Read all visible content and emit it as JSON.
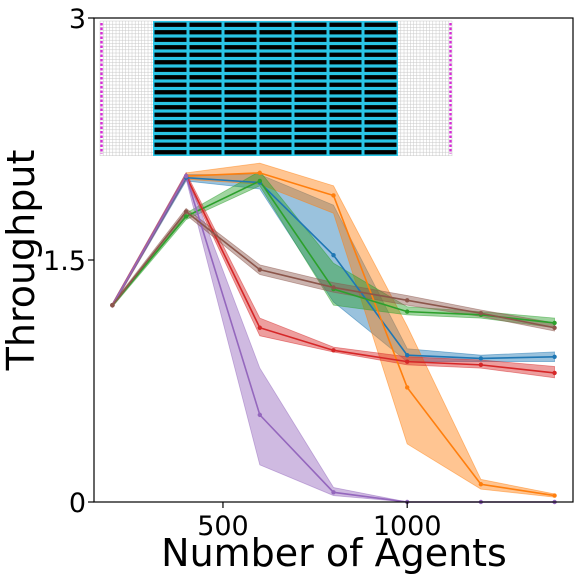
{
  "chart_data": {
    "type": "line",
    "title": "",
    "xlabel": "Number of Agents",
    "ylabel": "Throughput",
    "xlim": [
      150,
      1450
    ],
    "ylim": [
      0,
      3
    ],
    "xticks": [
      500,
      1000
    ],
    "xtick_labels": [
      "500",
      "1000"
    ],
    "yticks": [
      0,
      1.5,
      3
    ],
    "ytick_labels": [
      "0",
      "1.5",
      "3"
    ],
    "grid": false,
    "legend": "none",
    "x": [
      200,
      400,
      600,
      800,
      1000,
      1200,
      1400
    ],
    "series": [
      {
        "color": "#1f77b4",
        "values": [
          1.22,
          2.01,
          1.98,
          1.53,
          0.91,
          0.89,
          0.9
        ],
        "lower": [
          1.21,
          1.99,
          1.94,
          1.24,
          0.87,
          0.87,
          0.87
        ],
        "upper": [
          1.23,
          2.03,
          2.03,
          1.84,
          0.95,
          0.91,
          0.93
        ]
      },
      {
        "color": "#ff7f0e",
        "values": [
          1.22,
          2.02,
          2.04,
          1.9,
          0.71,
          0.11,
          0.04
        ],
        "lower": [
          1.21,
          2.0,
          1.97,
          1.79,
          0.36,
          0.08,
          0.03
        ],
        "upper": [
          1.23,
          2.04,
          2.1,
          1.96,
          1.09,
          0.14,
          0.05
        ]
      },
      {
        "color": "#2ca02c",
        "values": [
          1.22,
          1.77,
          1.99,
          1.32,
          1.18,
          1.16,
          1.11
        ],
        "lower": [
          1.21,
          1.75,
          1.96,
          1.22,
          1.16,
          1.14,
          1.08
        ],
        "upper": [
          1.23,
          1.79,
          2.05,
          1.48,
          1.21,
          1.18,
          1.14
        ]
      },
      {
        "color": "#d62728",
        "values": [
          1.22,
          2.02,
          1.08,
          0.94,
          0.87,
          0.85,
          0.8
        ],
        "lower": [
          1.21,
          2.0,
          1.03,
          0.93,
          0.85,
          0.83,
          0.77
        ],
        "upper": [
          1.23,
          2.04,
          1.14,
          0.96,
          0.9,
          0.88,
          0.84
        ]
      },
      {
        "color": "#9467bd",
        "values": [
          1.22,
          2.02,
          0.54,
          0.06,
          0.0,
          0.0,
          0.0
        ],
        "lower": [
          1.21,
          2.0,
          0.23,
          0.04,
          0.0,
          0.0,
          0.0
        ],
        "upper": [
          1.23,
          2.04,
          0.83,
          0.09,
          0.0,
          0.0,
          0.0
        ]
      },
      {
        "color": "#8c564b",
        "values": [
          1.22,
          1.8,
          1.44,
          1.33,
          1.25,
          1.17,
          1.08
        ],
        "lower": [
          1.21,
          1.78,
          1.41,
          1.3,
          1.22,
          1.15,
          1.06
        ],
        "upper": [
          1.23,
          1.82,
          1.47,
          1.36,
          1.28,
          1.19,
          1.11
        ]
      }
    ],
    "inset": {
      "description_colors": {
        "background": "#ffffff",
        "grid": "#c8c8c8",
        "shelf": "#000000",
        "aisle": "#29c5e6",
        "station": "#d62ad6"
      },
      "shelf_rows": 18,
      "shelf_cols": 7
    }
  }
}
